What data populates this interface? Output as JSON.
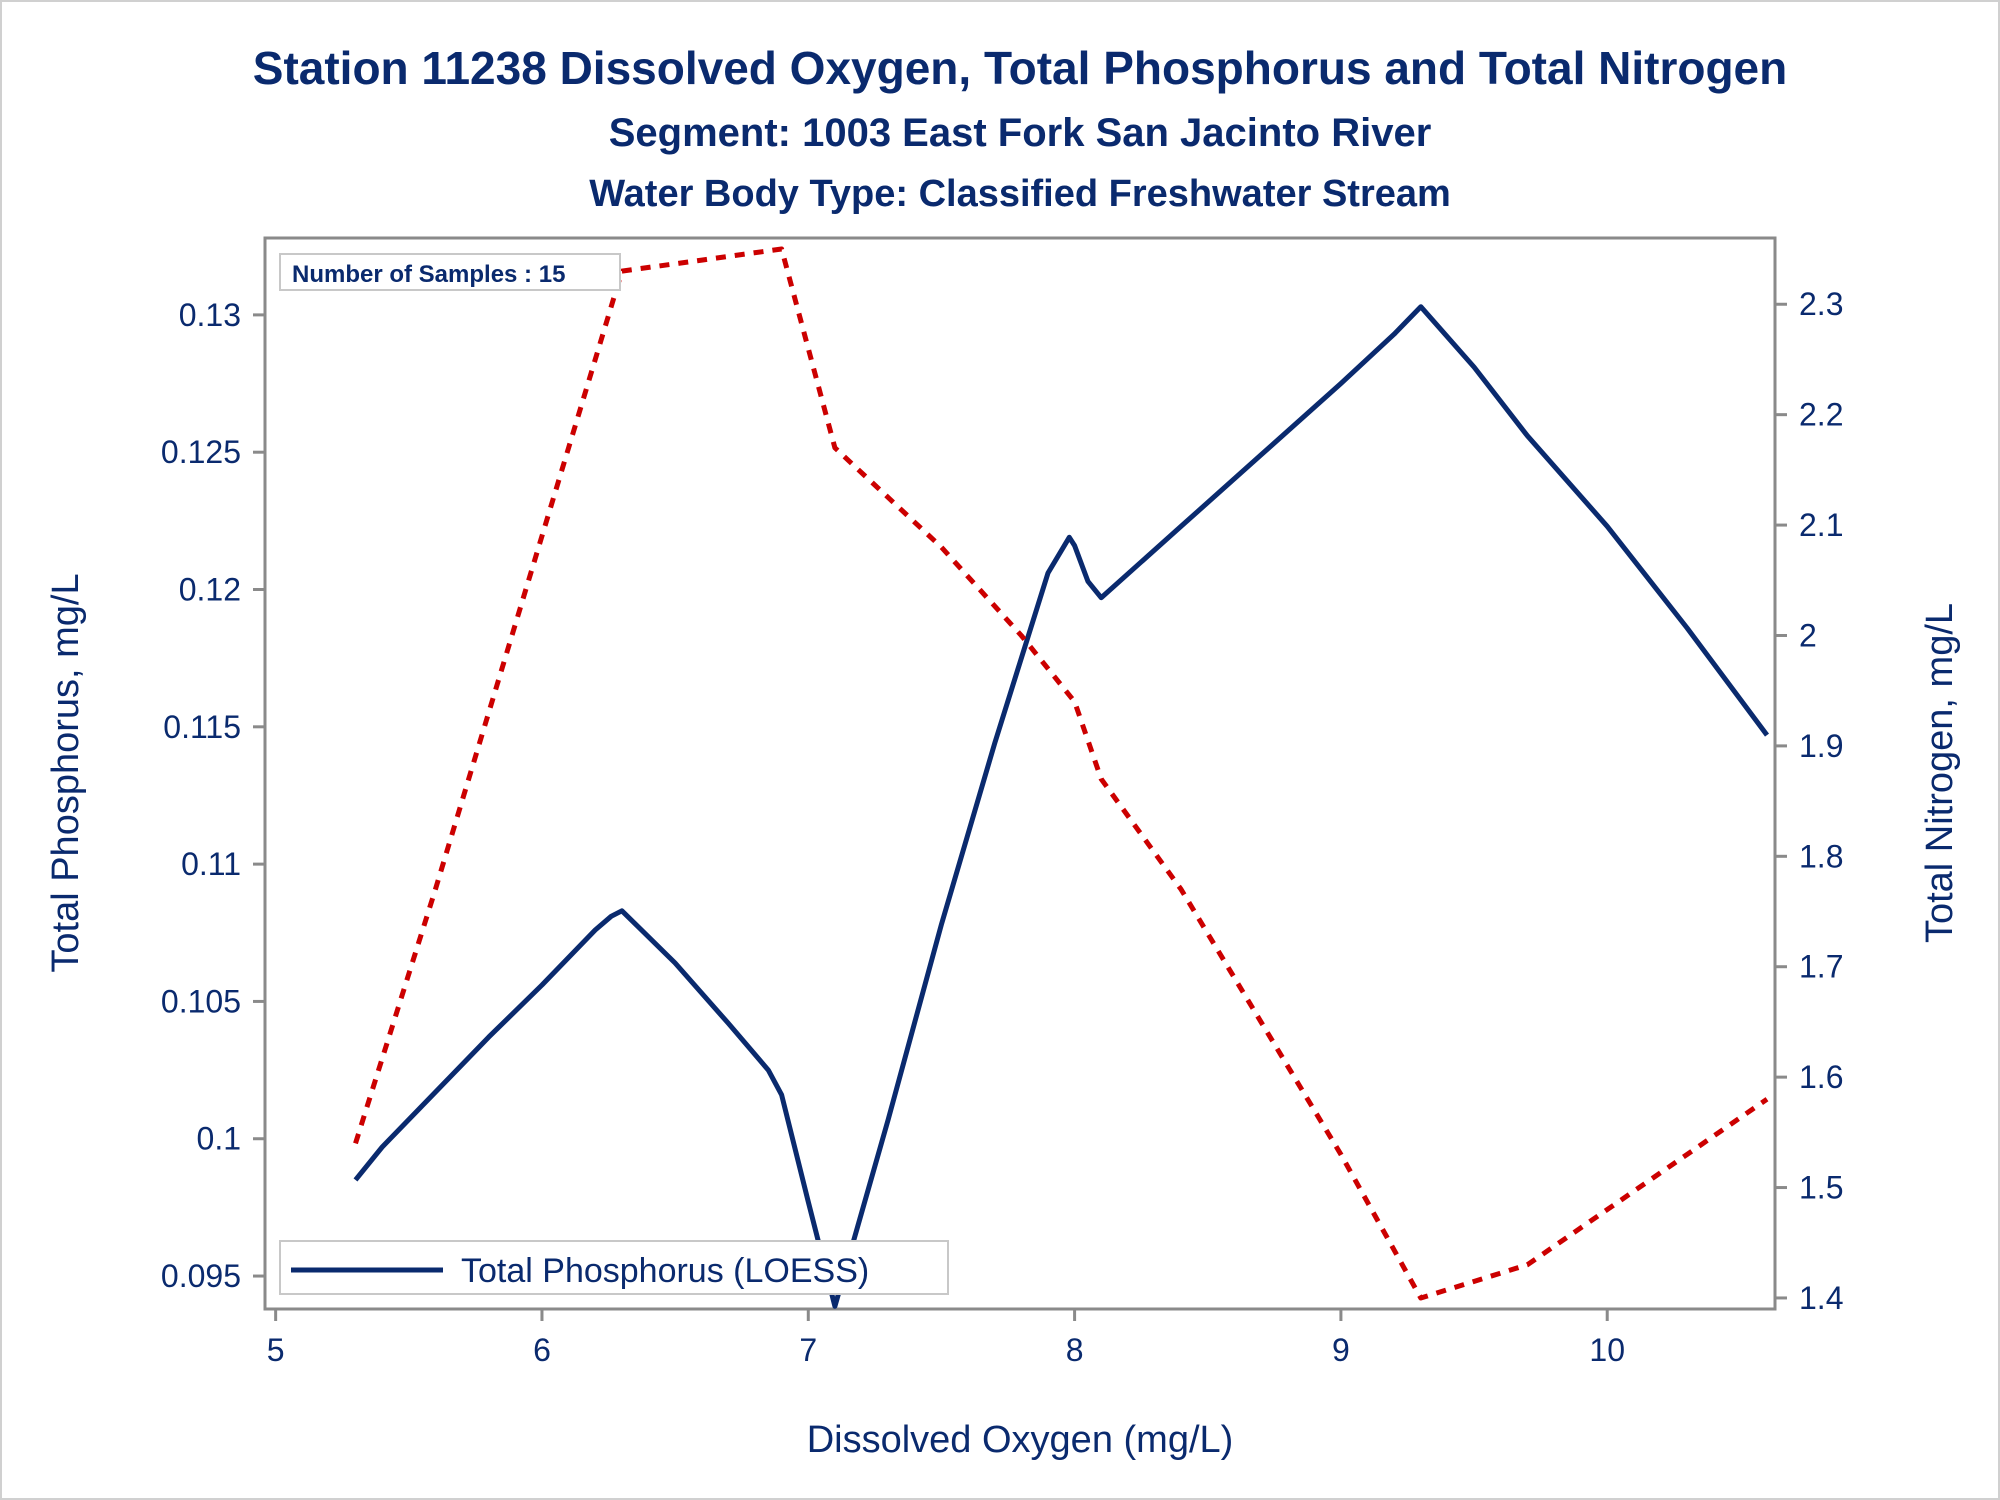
{
  "chart_data": {
    "type": "line",
    "title": "Station 11238  Dissolved Oxygen, Total Phosphorus and Total Nitrogen",
    "subtitle": "Segment: 1003  East Fork San Jacinto River",
    "subtitle2": "Water Body Type: Classified Freshwater Stream",
    "xlabel": "Dissolved Oxygen (mg/L)",
    "ylabel": "Total Phosphorus, mg/L",
    "y2label": "Total Nitrogen, mg/L",
    "xlim": [
      4.96,
      10.63
    ],
    "ylim": [
      0.0938,
      0.1328
    ],
    "y2lim": [
      1.39,
      2.36
    ],
    "x_ticks": [
      "5",
      "6",
      "7",
      "8",
      "9",
      "10"
    ],
    "x_tick_values": [
      5,
      6,
      7,
      8,
      9,
      10
    ],
    "y_ticks": [
      "0.095",
      "0.1",
      "0.105",
      "0.11",
      "0.115",
      "0.12",
      "0.125",
      "0.13"
    ],
    "y_tick_values": [
      0.095,
      0.1,
      0.105,
      0.11,
      0.115,
      0.12,
      0.125,
      0.13
    ],
    "y2_ticks": [
      "1.4",
      "1.5",
      "1.6",
      "1.7",
      "1.8",
      "1.9",
      "2",
      "2.1",
      "2.2",
      "2.3"
    ],
    "y2_tick_values": [
      1.4,
      1.5,
      1.6,
      1.7,
      1.8,
      1.9,
      2.0,
      2.1,
      2.2,
      2.3
    ],
    "grid": false,
    "legend_position": "bottom-left inside",
    "inset_label": "Number of Samples : 15",
    "series": [
      {
        "name": "Total Phosphorus (LOESS)",
        "axis": "left",
        "color": "#0a2a6e",
        "style": "solid",
        "x": [
          5.3,
          5.4,
          5.6,
          5.8,
          6.0,
          6.2,
          6.26,
          6.3,
          6.5,
          6.7,
          6.85,
          6.9,
          7.0,
          7.1,
          7.3,
          7.5,
          7.7,
          7.9,
          7.98,
          8.0,
          8.05,
          8.1,
          8.4,
          8.7,
          9.0,
          9.2,
          9.3,
          9.5,
          9.7,
          10.0,
          10.3,
          10.6
        ],
        "y": [
          0.0985,
          0.0997,
          0.1017,
          0.1037,
          0.1056,
          0.1076,
          0.1081,
          0.1083,
          0.1064,
          0.1042,
          0.1025,
          0.1016,
          0.0977,
          0.0939,
          0.1007,
          0.1078,
          0.1144,
          0.1206,
          0.1219,
          0.1216,
          0.1203,
          0.1197,
          0.1223,
          0.1249,
          0.1275,
          0.1293,
          0.1303,
          0.1281,
          0.1256,
          0.1223,
          0.1186,
          0.1147
        ]
      },
      {
        "name": "",
        "axis": "right",
        "color": "#cc0000",
        "style": "dashed",
        "x": [
          5.3,
          5.6,
          5.9,
          6.1,
          6.3,
          6.6,
          6.9,
          7.1,
          7.5,
          7.8,
          8.0,
          8.1,
          8.4,
          8.7,
          9.0,
          9.3,
          9.7,
          10.0,
          10.3,
          10.6
        ],
        "y": [
          1.54,
          1.77,
          2.01,
          2.17,
          2.33,
          2.34,
          2.35,
          2.17,
          2.08,
          2.0,
          1.94,
          1.87,
          1.77,
          1.65,
          1.53,
          1.4,
          1.43,
          1.48,
          1.53,
          1.58
        ]
      }
    ]
  }
}
